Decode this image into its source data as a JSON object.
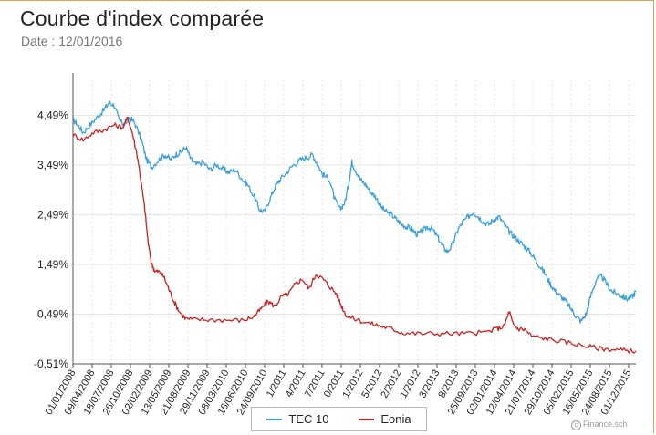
{
  "header": {
    "title": "Courbe d'index comparée",
    "subtitle": "Date : 12/01/2016"
  },
  "credit": "Finance.sch",
  "chart_data": {
    "type": "line",
    "y_ticks": [
      "-0,51%",
      "0,49%",
      "1,49%",
      "2,49%",
      "3,49%",
      "4,49%"
    ],
    "y_tick_values": [
      -0.51,
      0.49,
      1.49,
      2.49,
      3.49,
      4.49
    ],
    "ylim": [
      -0.51,
      5.2
    ],
    "x_ticks": [
      "01/01/2008",
      "09/04/2008",
      "18/07/2008",
      "26/10/2008",
      "02/02/2009",
      "13/05/2009",
      "21/08/2009",
      "29/11/2009",
      "08/03/2010",
      "16/06/2010",
      "24/09/2010",
      "1/2011",
      "4/2011",
      "7/2011",
      "0/2011",
      "1/2012",
      "5/2012",
      "2/2012",
      "1/2012",
      "3/2013",
      "8/2013",
      "25/09/2013",
      "02/01/2014",
      "12/04/2014",
      "21/07/2014",
      "29/10/2014",
      "05/02/2015",
      "16/05/2015",
      "24/08/2015",
      "01/12/2015"
    ],
    "grid": true,
    "legend_position": "bottom",
    "series": [
      {
        "name": "TEC 10",
        "color": "#3aa0dc",
        "points": [
          [
            0,
            4.4
          ],
          [
            0.15,
            4.3
          ],
          [
            0.3,
            4.15
          ],
          [
            0.5,
            4.3
          ],
          [
            0.7,
            4.45
          ],
          [
            0.9,
            4.6
          ],
          [
            1.05,
            4.75
          ],
          [
            1.2,
            4.7
          ],
          [
            1.35,
            4.4
          ],
          [
            1.5,
            4.3
          ],
          [
            1.65,
            4.45
          ],
          [
            1.8,
            4.35
          ],
          [
            2.0,
            4.0
          ],
          [
            2.15,
            3.6
          ],
          [
            2.3,
            3.45
          ],
          [
            2.5,
            3.6
          ],
          [
            2.7,
            3.7
          ],
          [
            2.85,
            3.6
          ],
          [
            3.0,
            3.7
          ],
          [
            3.15,
            3.75
          ],
          [
            3.3,
            3.85
          ],
          [
            3.45,
            3.6
          ],
          [
            3.6,
            3.5
          ],
          [
            3.8,
            3.55
          ],
          [
            4.0,
            3.4
          ],
          [
            4.2,
            3.5
          ],
          [
            4.4,
            3.4
          ],
          [
            4.55,
            3.35
          ],
          [
            4.75,
            3.4
          ],
          [
            4.95,
            3.2
          ],
          [
            5.1,
            3.1
          ],
          [
            5.3,
            2.85
          ],
          [
            5.45,
            2.6
          ],
          [
            5.6,
            2.55
          ],
          [
            5.75,
            2.8
          ],
          [
            5.9,
            3.05
          ],
          [
            6.05,
            3.2
          ],
          [
            6.25,
            3.35
          ],
          [
            6.45,
            3.5
          ],
          [
            6.65,
            3.6
          ],
          [
            6.85,
            3.65
          ],
          [
            7.0,
            3.7
          ],
          [
            7.15,
            3.5
          ],
          [
            7.3,
            3.3
          ],
          [
            7.5,
            3.2
          ],
          [
            7.65,
            2.8
          ],
          [
            7.8,
            2.6
          ],
          [
            7.95,
            2.75
          ],
          [
            8.05,
            3.1
          ],
          [
            8.15,
            3.55
          ],
          [
            8.25,
            3.4
          ],
          [
            8.4,
            3.2
          ],
          [
            8.55,
            3.1
          ],
          [
            8.7,
            2.95
          ],
          [
            8.85,
            2.85
          ],
          [
            9.0,
            2.65
          ],
          [
            9.15,
            2.55
          ],
          [
            9.3,
            2.5
          ],
          [
            9.45,
            2.4
          ],
          [
            9.6,
            2.3
          ],
          [
            9.75,
            2.25
          ],
          [
            9.9,
            2.2
          ],
          [
            10.05,
            2.1
          ],
          [
            10.2,
            2.15
          ],
          [
            10.35,
            2.25
          ],
          [
            10.5,
            2.2
          ],
          [
            10.65,
            2.05
          ],
          [
            10.8,
            1.85
          ],
          [
            10.95,
            1.75
          ],
          [
            11.1,
            1.9
          ],
          [
            11.25,
            2.2
          ],
          [
            11.4,
            2.35
          ],
          [
            11.55,
            2.45
          ],
          [
            11.7,
            2.55
          ],
          [
            11.85,
            2.45
          ],
          [
            12.0,
            2.35
          ],
          [
            12.15,
            2.3
          ],
          [
            12.3,
            2.4
          ],
          [
            12.45,
            2.45
          ],
          [
            12.6,
            2.3
          ],
          [
            12.75,
            2.15
          ],
          [
            12.9,
            2.05
          ],
          [
            13.05,
            1.95
          ],
          [
            13.2,
            1.85
          ],
          [
            13.35,
            1.75
          ],
          [
            13.5,
            1.6
          ],
          [
            13.65,
            1.45
          ],
          [
            13.8,
            1.3
          ],
          [
            13.95,
            1.1
          ],
          [
            14.1,
            0.95
          ],
          [
            14.25,
            0.85
          ],
          [
            14.4,
            0.75
          ],
          [
            14.55,
            0.6
          ],
          [
            14.7,
            0.45
          ],
          [
            14.85,
            0.35
          ],
          [
            15.0,
            0.5
          ],
          [
            15.15,
            0.9
          ],
          [
            15.3,
            1.2
          ],
          [
            15.45,
            1.25
          ],
          [
            15.6,
            1.1
          ],
          [
            15.75,
            0.95
          ],
          [
            15.9,
            0.9
          ],
          [
            16.05,
            0.85
          ],
          [
            16.2,
            0.8
          ],
          [
            16.35,
            0.85
          ],
          [
            16.45,
            0.95
          ]
        ]
      },
      {
        "name": "Eonia",
        "color": "#cc1f1f",
        "points": [
          [
            0,
            4.1
          ],
          [
            0.3,
            4.0
          ],
          [
            0.6,
            4.15
          ],
          [
            0.9,
            4.2
          ],
          [
            1.2,
            4.3
          ],
          [
            1.45,
            4.25
          ],
          [
            1.6,
            4.45
          ],
          [
            1.75,
            4.1
          ],
          [
            1.9,
            3.6
          ],
          [
            2.0,
            3.1
          ],
          [
            2.1,
            2.6
          ],
          [
            2.2,
            1.9
          ],
          [
            2.3,
            1.5
          ],
          [
            2.4,
            1.35
          ],
          [
            2.5,
            1.35
          ],
          [
            2.65,
            1.25
          ],
          [
            2.8,
            1.0
          ],
          [
            2.95,
            0.75
          ],
          [
            3.1,
            0.55
          ],
          [
            3.3,
            0.4
          ],
          [
            3.6,
            0.38
          ],
          [
            4.0,
            0.38
          ],
          [
            4.5,
            0.37
          ],
          [
            5.0,
            0.37
          ],
          [
            5.3,
            0.45
          ],
          [
            5.5,
            0.6
          ],
          [
            5.7,
            0.75
          ],
          [
            5.9,
            0.65
          ],
          [
            6.1,
            0.85
          ],
          [
            6.3,
            0.9
          ],
          [
            6.5,
            1.1
          ],
          [
            6.7,
            1.2
          ],
          [
            6.9,
            1.0
          ],
          [
            7.1,
            1.3
          ],
          [
            7.3,
            1.2
          ],
          [
            7.5,
            1.05
          ],
          [
            7.7,
            0.9
          ],
          [
            7.85,
            0.65
          ],
          [
            8.0,
            0.45
          ],
          [
            8.3,
            0.38
          ],
          [
            8.7,
            0.3
          ],
          [
            9.0,
            0.25
          ],
          [
            9.3,
            0.2
          ],
          [
            9.6,
            0.12
          ],
          [
            10.0,
            0.1
          ],
          [
            10.5,
            0.1
          ],
          [
            11.0,
            0.1
          ],
          [
            11.5,
            0.1
          ],
          [
            12.0,
            0.12
          ],
          [
            12.4,
            0.2
          ],
          [
            12.6,
            0.25
          ],
          [
            12.75,
            0.55
          ],
          [
            12.85,
            0.3
          ],
          [
            13.0,
            0.2
          ],
          [
            13.2,
            0.18
          ],
          [
            13.4,
            0.05
          ],
          [
            13.8,
            0.0
          ],
          [
            14.2,
            -0.05
          ],
          [
            14.6,
            -0.1
          ],
          [
            15.0,
            -0.15
          ],
          [
            15.4,
            -0.2
          ],
          [
            15.8,
            -0.22
          ],
          [
            16.1,
            -0.24
          ],
          [
            16.45,
            -0.25
          ]
        ]
      }
    ]
  },
  "legend": {
    "items": [
      {
        "label": "TEC 10",
        "color": "#3aa0dc"
      },
      {
        "label": "Eonia",
        "color": "#cc1f1f"
      }
    ]
  }
}
